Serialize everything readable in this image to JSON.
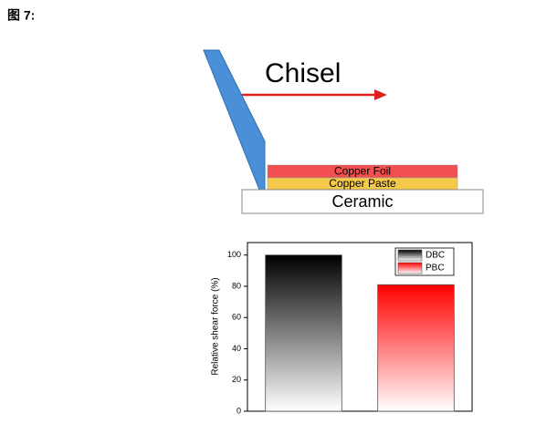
{
  "figure_label": "图 7:",
  "diagram": {
    "tool": "Chisel",
    "layers": [
      "Copper Foil",
      "Copper Paste",
      "Ceramic"
    ]
  },
  "chart_data": {
    "type": "bar",
    "y_label": "Relative shear force (%)",
    "categories": [
      null,
      null
    ],
    "series": [
      {
        "name": "DBC",
        "color": "#000000",
        "values": [
          100,
          null
        ]
      },
      {
        "name": "PBC",
        "color": "#ff0000",
        "values": [
          null,
          81
        ]
      }
    ],
    "ylim": [
      0,
      108
    ],
    "yticks": [
      0,
      20,
      40,
      60,
      80,
      100
    ],
    "grid": false,
    "legend": "upper right"
  }
}
